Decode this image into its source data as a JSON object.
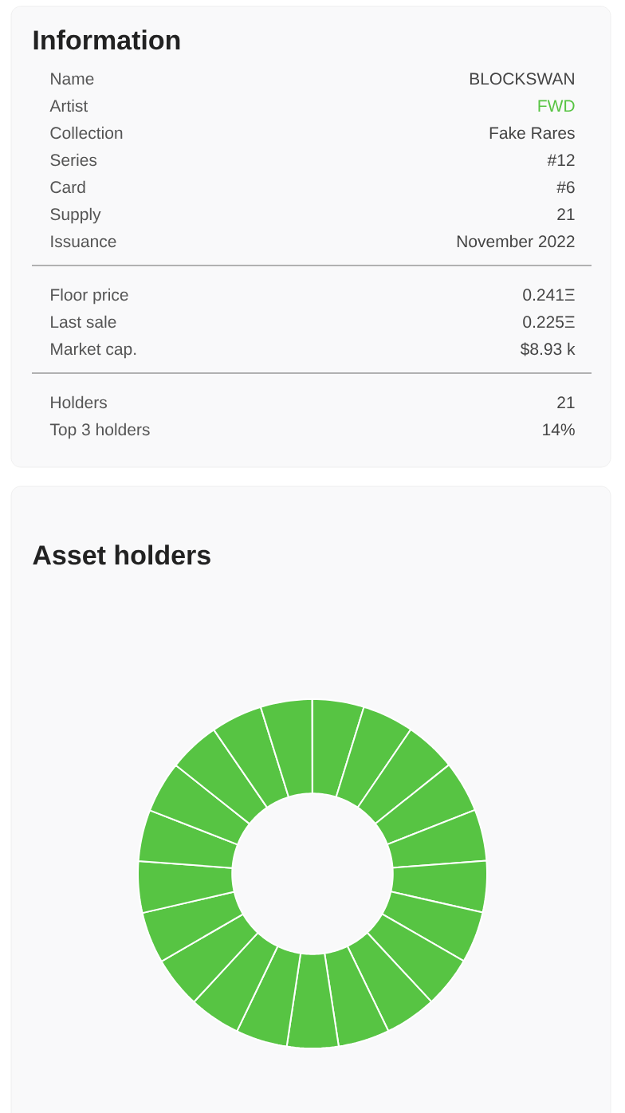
{
  "chart_data": [
    {
      "type": "other",
      "title": "Information",
      "annotations": [
        "Name",
        "BLOCKSWAN",
        "Artist",
        "FWD",
        "Collection",
        "Fake Rares",
        "Series",
        "#12",
        "Card",
        "#6",
        "Supply",
        "21",
        "Issuance",
        "November 2022",
        "Floor price",
        "0.241Ξ",
        "Last sale",
        "0.225Ξ",
        "Market cap.",
        "$8.93 k",
        "Holders",
        "21",
        "Top 3 holders",
        "14%"
      ]
    },
    {
      "type": "donut",
      "title": "Asset holders",
      "categories": [
        null,
        null,
        null,
        null,
        null,
        null,
        null,
        null,
        null,
        null,
        null,
        null,
        null,
        null,
        null,
        null,
        null,
        null,
        null,
        null,
        null
      ],
      "values": [
        4.76,
        4.76,
        4.76,
        4.76,
        4.76,
        4.76,
        4.76,
        4.76,
        4.76,
        4.76,
        4.76,
        4.76,
        4.76,
        4.76,
        4.76,
        4.76,
        4.76,
        4.76,
        4.76,
        4.76,
        4.76
      ],
      "color": "#57c443"
    }
  ]
}
